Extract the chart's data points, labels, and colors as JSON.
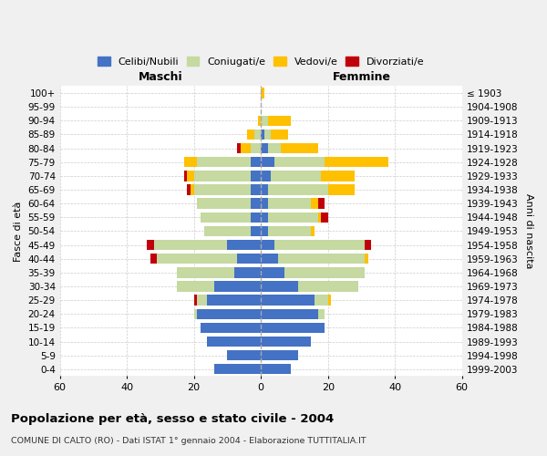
{
  "age_groups": [
    "0-4",
    "5-9",
    "10-14",
    "15-19",
    "20-24",
    "25-29",
    "30-34",
    "35-39",
    "40-44",
    "45-49",
    "50-54",
    "55-59",
    "60-64",
    "65-69",
    "70-74",
    "75-79",
    "80-84",
    "85-89",
    "90-94",
    "95-99",
    "100+"
  ],
  "birth_years": [
    "1999-2003",
    "1994-1998",
    "1989-1993",
    "1984-1988",
    "1979-1983",
    "1974-1978",
    "1969-1973",
    "1964-1968",
    "1959-1963",
    "1954-1958",
    "1949-1953",
    "1944-1948",
    "1939-1943",
    "1934-1938",
    "1929-1933",
    "1924-1928",
    "1919-1923",
    "1914-1918",
    "1909-1913",
    "1904-1908",
    "≤ 1903"
  ],
  "colors": {
    "celibi": "#4472c4",
    "coniugati": "#c5d9a0",
    "vedovi": "#ffc000",
    "divorziati": "#c0000b"
  },
  "maschi": {
    "celibi": [
      14,
      10,
      16,
      18,
      19,
      16,
      14,
      8,
      7,
      10,
      3,
      3,
      3,
      3,
      3,
      3,
      0,
      0,
      0,
      0,
      0
    ],
    "coniugati": [
      0,
      0,
      0,
      0,
      1,
      3,
      11,
      17,
      24,
      22,
      14,
      15,
      16,
      17,
      17,
      16,
      3,
      2,
      0,
      0,
      0
    ],
    "vedovi": [
      0,
      0,
      0,
      0,
      0,
      0,
      0,
      0,
      0,
      0,
      0,
      0,
      0,
      1,
      2,
      4,
      3,
      2,
      1,
      0,
      0
    ],
    "divorziati": [
      0,
      0,
      0,
      0,
      0,
      1,
      0,
      0,
      2,
      2,
      0,
      0,
      0,
      1,
      1,
      0,
      1,
      0,
      0,
      0,
      0
    ]
  },
  "femmine": {
    "celibi": [
      9,
      11,
      15,
      19,
      17,
      16,
      11,
      7,
      5,
      4,
      2,
      2,
      2,
      2,
      3,
      4,
      2,
      1,
      0,
      0,
      0
    ],
    "coniugati": [
      0,
      0,
      0,
      0,
      2,
      4,
      18,
      24,
      26,
      27,
      13,
      15,
      13,
      18,
      15,
      15,
      4,
      2,
      2,
      0,
      0
    ],
    "vedovi": [
      0,
      0,
      0,
      0,
      0,
      1,
      0,
      0,
      1,
      0,
      1,
      1,
      2,
      8,
      10,
      19,
      11,
      5,
      7,
      0,
      1
    ],
    "divorziati": [
      0,
      0,
      0,
      0,
      0,
      0,
      0,
      0,
      0,
      2,
      0,
      2,
      2,
      0,
      0,
      0,
      0,
      0,
      0,
      0,
      0
    ]
  },
  "title": "Popolazione per età, sesso e stato civile - 2004",
  "subtitle": "COMUNE DI CALTO (RO) - Dati ISTAT 1° gennaio 2004 - Elaborazione TUTTITALIA.IT",
  "xlabel_left": "Maschi",
  "xlabel_right": "Femmine",
  "ylabel_left": "Fasce di età",
  "ylabel_right": "Anni di nascita",
  "xlim": 60,
  "background_color": "#f0f0f0",
  "plot_bg_color": "#ffffff",
  "legend_labels": [
    "Celibi/Nubili",
    "Coniugati/e",
    "Vedovi/e",
    "Divorziati/e"
  ]
}
